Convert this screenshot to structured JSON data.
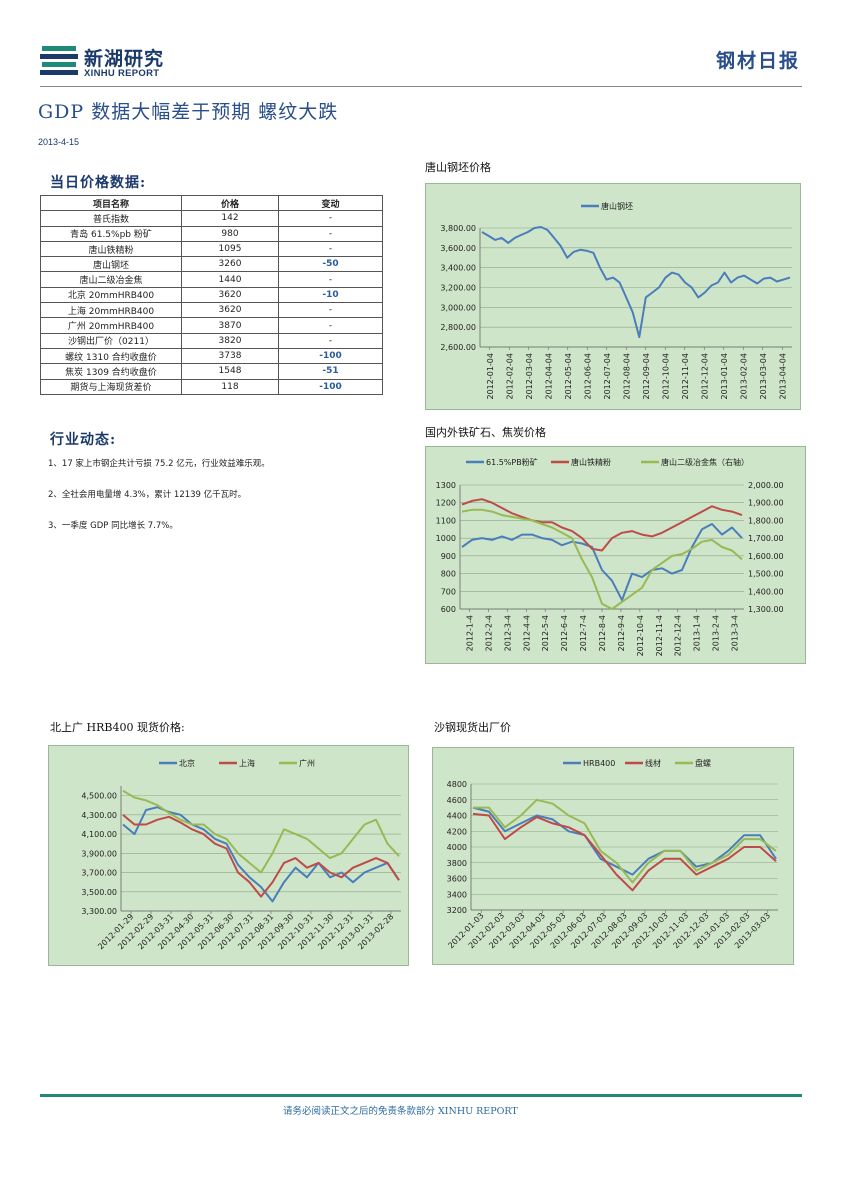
{
  "header": {
    "logo_cn": "新湖研究",
    "logo_en": "XINHU REPORT",
    "report_type": "钢材日报"
  },
  "title": "GDP 数据大幅差于预期  螺纹大跌",
  "date": "2013-4-15",
  "price_section": {
    "title": "当日价格数据:",
    "columns": [
      "项目名称",
      "价格",
      "变动"
    ],
    "rows": [
      {
        "name": "普氏指数",
        "price": "142",
        "change": "-"
      },
      {
        "name": "青岛 61.5%pb 粉矿",
        "price": "980",
        "change": "-"
      },
      {
        "name": "唐山铁精粉",
        "price": "1095",
        "change": "-"
      },
      {
        "name": "唐山钢坯",
        "price": "3260",
        "change": "-50"
      },
      {
        "name": "唐山二级冶金焦",
        "price": "1440",
        "change": "-"
      },
      {
        "name": "北京 20mmHRB400",
        "price": "3620",
        "change": "-10"
      },
      {
        "name": "上海 20mmHRB400",
        "price": "3620",
        "change": "-"
      },
      {
        "name": "广州 20mmHRB400",
        "price": "3870",
        "change": "-"
      },
      {
        "name": "沙钢出厂价（0211）",
        "price": "3820",
        "change": "-"
      },
      {
        "name": "螺纹 1310 合约收盘价",
        "price": "3738",
        "change": "-100"
      },
      {
        "name": "焦炭 1309 合约收盘价",
        "price": "1548",
        "change": "-51"
      },
      {
        "name": "期货与上海现货差价",
        "price": "118",
        "change": "-100"
      }
    ]
  },
  "news_section": {
    "title": "行业动态:",
    "items": [
      "1、17 家上市钢企共计亏损 75.2 亿元，行业效益难乐观。",
      "2、全社会用电量增 4.3%，累计 12139 亿千瓦时。",
      "3、一季度 GDP 同比增长 7.7%。"
    ]
  },
  "footer": {
    "disclaimer": "请务必阅读正文之后的免责条款部分 XINHU REPORT"
  },
  "colors": {
    "blue": "#4a7ebb",
    "red": "#be4b48",
    "green": "#98b954",
    "chart_bg": "#cfe5c9",
    "title_blue": "#2a4e8a",
    "footer_line": "#1f8a7a"
  },
  "chart_data": [
    {
      "id": "billet",
      "type": "line",
      "title": "唐山钢坯价格",
      "ylim": [
        2600,
        3800
      ],
      "yticks": [
        "2,600.00",
        "2,800.00",
        "3,000.00",
        "3,200.00",
        "3,400.00",
        "3,600.00",
        "3,800.00"
      ],
      "yvalues": [
        2600,
        2800,
        3000,
        3200,
        3400,
        3600,
        3800
      ],
      "xlabels": [
        "2012-01-04",
        "2012-02-04",
        "2012-03-04",
        "2012-04-04",
        "2012-05-04",
        "2012-06-04",
        "2012-07-04",
        "2012-08-04",
        "2012-09-04",
        "2012-10-04",
        "2012-11-04",
        "2012-12-04",
        "2013-01-04",
        "2013-02-04",
        "2013-03-04",
        "2013-04-04"
      ],
      "series": [
        {
          "name": "唐山钢坯",
          "color": "#4a7ebb",
          "values": [
            3760,
            3720,
            3680,
            3700,
            3650,
            3700,
            3730,
            3760,
            3800,
            3810,
            3780,
            3700,
            3620,
            3500,
            3560,
            3580,
            3570,
            3550,
            3400,
            3280,
            3300,
            3250,
            3100,
            2950,
            2700,
            3100,
            3150,
            3200,
            3300,
            3350,
            3330,
            3250,
            3200,
            3100,
            3150,
            3220,
            3250,
            3350,
            3250,
            3300,
            3320,
            3280,
            3240,
            3290,
            3300,
            3260,
            3280,
            3300
          ]
        }
      ]
    },
    {
      "id": "ore_coke",
      "type": "line",
      "title": "国内外铁矿石、焦炭价格",
      "ylim": [
        600,
        1300
      ],
      "y2lim": [
        1300,
        2000
      ],
      "yticks": [
        "600",
        "700",
        "800",
        "900",
        "1000",
        "1100",
        "1200",
        "1300"
      ],
      "yvalues": [
        600,
        700,
        800,
        900,
        1000,
        1100,
        1200,
        1300
      ],
      "y2ticks": [
        "1,300.00",
        "1,400.00",
        "1,500.00",
        "1,600.00",
        "1,700.00",
        "1,800.00",
        "1,900.00",
        "2,000.00"
      ],
      "xlabels": [
        "2012-1-4",
        "2012-2-4",
        "2012-3-4",
        "2012-4-4",
        "2012-5-4",
        "2012-6-4",
        "2012-7-4",
        "2012-8-4",
        "2012-9-4",
        "2012-10-4",
        "2012-11-4",
        "2012-12-4",
        "2013-1-4",
        "2013-2-4",
        "2013-3-4"
      ],
      "series": [
        {
          "name": "61.5%PB粉矿",
          "color": "#4a7ebb",
          "axis": "left",
          "values": [
            950,
            990,
            1000,
            990,
            1010,
            990,
            1020,
            1020,
            1000,
            990,
            960,
            980,
            970,
            950,
            820,
            760,
            650,
            800,
            780,
            820,
            830,
            800,
            820,
            950,
            1050,
            1080,
            1020,
            1060,
            1000
          ]
        },
        {
          "name": "唐山铁精粉",
          "color": "#be4b48",
          "axis": "left",
          "values": [
            1190,
            1210,
            1220,
            1200,
            1170,
            1140,
            1120,
            1100,
            1090,
            1090,
            1060,
            1040,
            1000,
            940,
            930,
            1000,
            1030,
            1040,
            1020,
            1010,
            1030,
            1060,
            1090,
            1120,
            1150,
            1180,
            1160,
            1150,
            1130
          ]
        },
        {
          "name": "唐山二级冶金焦（右轴）",
          "color": "#98b954",
          "axis": "right",
          "values": [
            1850,
            1860,
            1860,
            1850,
            1830,
            1820,
            1810,
            1800,
            1780,
            1760,
            1730,
            1700,
            1580,
            1480,
            1330,
            1300,
            1340,
            1380,
            1420,
            1520,
            1560,
            1600,
            1610,
            1640,
            1680,
            1690,
            1650,
            1630,
            1580
          ]
        }
      ]
    },
    {
      "id": "hrb400",
      "type": "line",
      "title": "北上广 HRB400 现货价格:",
      "ylim": [
        3300,
        4600
      ],
      "yticks": [
        "3,300.00",
        "3,500.00",
        "3,700.00",
        "3,900.00",
        "4,100.00",
        "4,300.00",
        "4,500.00"
      ],
      "yvalues": [
        3300,
        3500,
        3700,
        3900,
        4100,
        4300,
        4500
      ],
      "xlabels": [
        "2012-01-29",
        "2012-02-29",
        "2012-03-31",
        "2012-04-30",
        "2012-05-31",
        "2012-06-30",
        "2012-07-31",
        "2012-08-31",
        "2012-09-30",
        "2012-10-31",
        "2012-11-30",
        "2012-12-31",
        "2013-01-31",
        "2013-02-28"
      ],
      "series": [
        {
          "name": "北京",
          "color": "#4a7ebb",
          "values": [
            4200,
            4100,
            4350,
            4380,
            4330,
            4300,
            4200,
            4150,
            4050,
            4000,
            3780,
            3650,
            3550,
            3400,
            3600,
            3750,
            3650,
            3800,
            3650,
            3700,
            3600,
            3700,
            3750,
            3800,
            3620
          ]
        },
        {
          "name": "上海",
          "color": "#be4b48",
          "values": [
            4300,
            4200,
            4200,
            4250,
            4280,
            4220,
            4150,
            4100,
            4000,
            3950,
            3700,
            3600,
            3450,
            3600,
            3800,
            3850,
            3750,
            3800,
            3700,
            3650,
            3750,
            3800,
            3850,
            3800,
            3620
          ]
        },
        {
          "name": "广州",
          "color": "#98b954",
          "values": [
            4550,
            4480,
            4450,
            4400,
            4320,
            4250,
            4200,
            4200,
            4100,
            4050,
            3900,
            3800,
            3700,
            3900,
            4150,
            4100,
            4050,
            3950,
            3850,
            3900,
            4050,
            4200,
            4250,
            4000,
            3870
          ]
        }
      ]
    },
    {
      "id": "shagang",
      "type": "line",
      "title": "沙钢现货出厂价",
      "ylim": [
        3200,
        4800
      ],
      "yticks": [
        "3200",
        "3400",
        "3600",
        "3800",
        "4000",
        "4200",
        "4400",
        "4600",
        "4800"
      ],
      "yvalues": [
        3200,
        3400,
        3600,
        3800,
        4000,
        4200,
        4400,
        4600,
        4800
      ],
      "xlabels": [
        "2012-01-03",
        "2012-02-03",
        "2012-03-03",
        "2012-04-03",
        "2012-05-03",
        "2012-06-03",
        "2012-07-03",
        "2012-08-03",
        "2012-09-03",
        "2012-10-03",
        "2012-11-03",
        "2012-12-03",
        "2013-01-03",
        "2013-02-03",
        "2013-03-03"
      ],
      "series": [
        {
          "name": "HRB400",
          "color": "#4a7ebb",
          "values": [
            4500,
            4450,
            4200,
            4300,
            4400,
            4350,
            4200,
            4150,
            3850,
            3750,
            3650,
            3850,
            3950,
            3950,
            3750,
            3800,
            3950,
            4150,
            4150,
            3850
          ]
        },
        {
          "name": "线材",
          "color": "#be4b48",
          "values": [
            4420,
            4400,
            4100,
            4250,
            4380,
            4300,
            4250,
            4150,
            3900,
            3650,
            3450,
            3700,
            3850,
            3850,
            3650,
            3750,
            3850,
            4000,
            4000,
            3820
          ]
        },
        {
          "name": "盘螺",
          "color": "#98b954",
          "values": [
            4500,
            4500,
            4250,
            4400,
            4600,
            4550,
            4400,
            4300,
            3950,
            3800,
            3550,
            3800,
            3950,
            3950,
            3700,
            3800,
            3900,
            4100,
            4100,
            3950
          ]
        }
      ]
    }
  ]
}
